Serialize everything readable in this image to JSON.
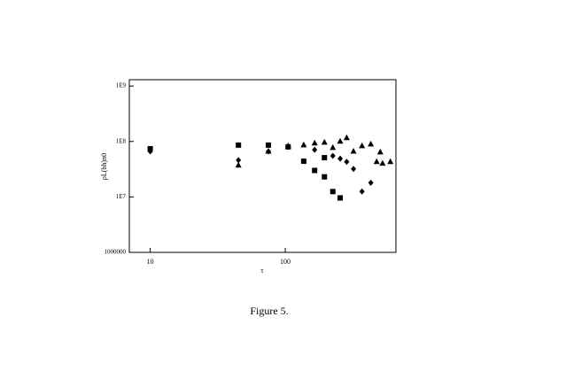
{
  "chart_data": {
    "type": "scatter",
    "xlabel": "τ",
    "ylabel": "ρL(bh)n0",
    "caption": "Figure 5.",
    "xscale": "log",
    "yscale": "log",
    "xlim": [
      7,
      660
    ],
    "ylim": [
      1000000,
      1300000000
    ],
    "xticks": [
      10,
      100
    ],
    "yticks": [
      1000000,
      {
        "value": 10000000,
        "label": "1E7"
      },
      {
        "value": 100000000,
        "label": "1E8"
      },
      {
        "value": 1000000000,
        "label": "1E9"
      }
    ],
    "series": [
      {
        "marker": "square",
        "color": "#000000",
        "x": [
          10,
          45,
          75,
          105,
          137,
          165,
          195,
          195,
          225,
          255
        ],
        "values": [
          74000000,
          86000000,
          86000000,
          80000000,
          44000000,
          30000000,
          23000000,
          51000000,
          12500000,
          9600000
        ]
      },
      {
        "marker": "diamond",
        "color": "#000000",
        "x": [
          10,
          45,
          75,
          105,
          165,
          225,
          255,
          285,
          320,
          370,
          430
        ],
        "values": [
          66000000,
          46000000,
          66000000,
          80000000,
          71000000,
          55000000,
          49000000,
          43000000,
          32000000,
          12500000,
          18000000
        ]
      },
      {
        "marker": "triangle",
        "color": "#000000",
        "x": [
          45,
          75,
          105,
          137,
          165,
          195,
          225,
          255,
          285,
          320,
          370,
          430,
          475,
          505,
          525,
          600
        ],
        "values": [
          37000000,
          66000000,
          83000000,
          86000000,
          93000000,
          96000000,
          77000000,
          100000000,
          116000000,
          66000000,
          83000000,
          89000000,
          43000000,
          64000000,
          40000000,
          43000000
        ]
      }
    ]
  }
}
